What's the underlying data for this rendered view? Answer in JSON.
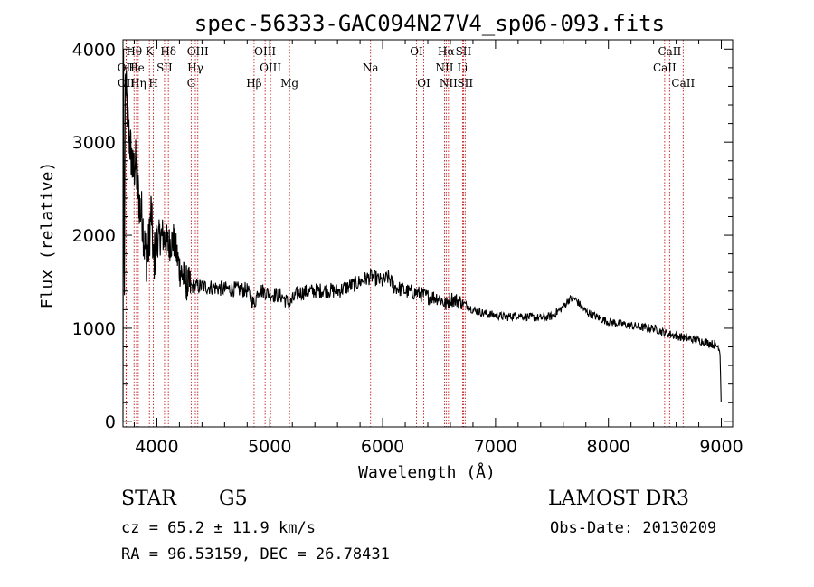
{
  "chart_data": {
    "type": "line",
    "title": "spec-56333-GAC094N27V4_sp06-093.fits",
    "xlabel": "Wavelength (Å)",
    "ylabel": "Flux (relative)",
    "xlim": [
      3700,
      9100
    ],
    "ylim": [
      -60,
      4100
    ],
    "x_ticks": [
      4000,
      5000,
      6000,
      7000,
      8000,
      9000
    ],
    "y_ticks": [
      0,
      1000,
      2000,
      3000,
      4000
    ],
    "series": [
      {
        "name": "spectrum",
        "anchors": [
          [
            3700,
            0
          ],
          [
            3705,
            4000
          ],
          [
            3712,
            1200
          ],
          [
            3720,
            3700
          ],
          [
            3735,
            3400
          ],
          [
            3750,
            3100
          ],
          [
            3770,
            2900
          ],
          [
            3790,
            2650
          ],
          [
            3810,
            2800
          ],
          [
            3830,
            2500
          ],
          [
            3850,
            2300
          ],
          [
            3870,
            2200
          ],
          [
            3890,
            1900
          ],
          [
            3910,
            1750
          ],
          [
            3930,
            1900
          ],
          [
            3950,
            2300
          ],
          [
            3970,
            1700
          ],
          [
            4000,
            1950
          ],
          [
            4050,
            2000
          ],
          [
            4100,
            1900
          ],
          [
            4150,
            1950
          ],
          [
            4200,
            1650
          ],
          [
            4250,
            1500
          ],
          [
            4300,
            1450
          ],
          [
            4400,
            1450
          ],
          [
            4500,
            1440
          ],
          [
            4600,
            1420
          ],
          [
            4700,
            1420
          ],
          [
            4800,
            1410
          ],
          [
            4862,
            1250
          ],
          [
            4900,
            1420
          ],
          [
            5000,
            1370
          ],
          [
            5100,
            1350
          ],
          [
            5175,
            1260
          ],
          [
            5250,
            1380
          ],
          [
            5400,
            1400
          ],
          [
            5500,
            1410
          ],
          [
            5600,
            1400
          ],
          [
            5700,
            1450
          ],
          [
            5800,
            1500
          ],
          [
            5900,
            1560
          ],
          [
            6000,
            1500
          ],
          [
            6050,
            1550
          ],
          [
            6100,
            1450
          ],
          [
            6200,
            1400
          ],
          [
            6300,
            1380
          ],
          [
            6400,
            1340
          ],
          [
            6500,
            1330
          ],
          [
            6563,
            1250
          ],
          [
            6600,
            1320
          ],
          [
            6700,
            1280
          ],
          [
            6800,
            1200
          ],
          [
            6900,
            1160
          ],
          [
            7000,
            1140
          ],
          [
            7100,
            1120
          ],
          [
            7200,
            1140
          ],
          [
            7300,
            1120
          ],
          [
            7400,
            1110
          ],
          [
            7500,
            1130
          ],
          [
            7600,
            1230
          ],
          [
            7650,
            1310
          ],
          [
            7700,
            1320
          ],
          [
            7750,
            1250
          ],
          [
            7800,
            1180
          ],
          [
            7900,
            1120
          ],
          [
            8000,
            1070
          ],
          [
            8100,
            1050
          ],
          [
            8200,
            1030
          ],
          [
            8300,
            1010
          ],
          [
            8400,
            1000
          ],
          [
            8500,
            950
          ],
          [
            8600,
            920
          ],
          [
            8700,
            890
          ],
          [
            8800,
            870
          ],
          [
            8900,
            840
          ],
          [
            8980,
            800
          ],
          [
            8990,
            700
          ],
          [
            9000,
            80
          ]
        ]
      }
    ],
    "lines_top": [
      {
        "label": "Hθ",
        "x": 3798
      },
      {
        "label": "K",
        "x": 3934
      },
      {
        "label": "Hδ",
        "x": 4102
      },
      {
        "label": "OIII",
        "x": 4363
      },
      {
        "label": "OIII",
        "x": 4959
      },
      {
        "label": "OI",
        "x": 6300
      },
      {
        "label": "Hα",
        "x": 6563
      },
      {
        "label": "SII",
        "x": 6716
      },
      {
        "label": "CaII",
        "x": 8542
      }
    ],
    "lines_mid": [
      {
        "label": "OII",
        "x": 3727
      },
      {
        "label": "He",
        "x": 3820
      },
      {
        "label": "SII",
        "x": 4068
      },
      {
        "label": "Hγ",
        "x": 4341
      },
      {
        "label": "OIII",
        "x": 5007
      },
      {
        "label": "Na",
        "x": 5893
      },
      {
        "label": "NII",
        "x": 6548
      },
      {
        "label": "Li",
        "x": 6708
      },
      {
        "label": "CaII",
        "x": 8498
      }
    ],
    "lines_bot": [
      {
        "label": "OII",
        "x": 3729
      },
      {
        "label": "Hη",
        "x": 3835
      },
      {
        "label": "H",
        "x": 3969
      },
      {
        "label": "G",
        "x": 4304
      },
      {
        "label": "Hβ",
        "x": 4861
      },
      {
        "label": "Mg",
        "x": 5175
      },
      {
        "label": "OI",
        "x": 6364
      },
      {
        "label": "NII",
        "x": 6583
      },
      {
        "label": "SII",
        "x": 6731
      },
      {
        "label": "CaII",
        "x": 8662
      }
    ]
  },
  "info": {
    "class": "STAR",
    "subclass": "G5",
    "survey": "LAMOST DR3",
    "cz": "cz = 65.2 ± 11.9 km/s",
    "obs_date": "Obs-Date: 20130209",
    "coords": "RA =  96.53159, DEC =  26.78431"
  },
  "colors": {
    "line_marker": "#c81e1e",
    "spectrum": "#000000",
    "axis": "#000000"
  }
}
